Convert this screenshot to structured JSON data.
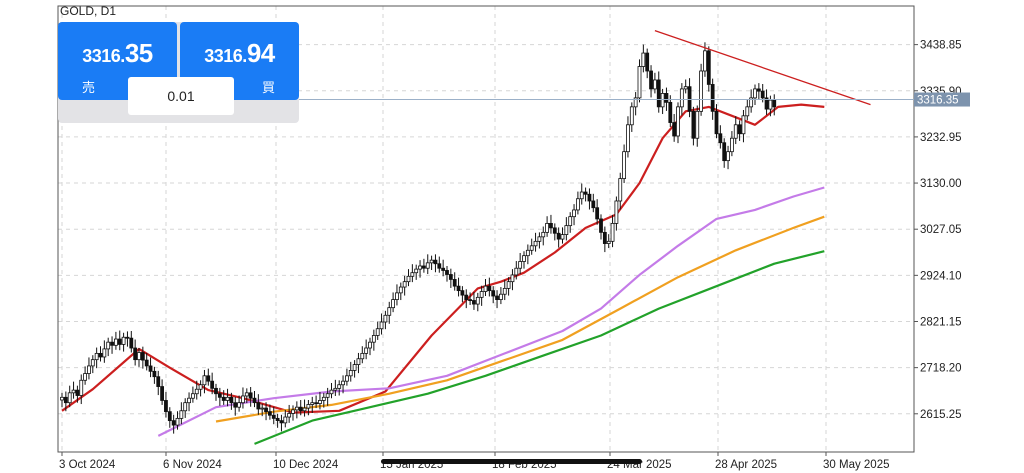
{
  "symbol": "GOLD, D1",
  "trade": {
    "sell": {
      "price_prefix": "3316.",
      "price_big": "35",
      "label": "売"
    },
    "buy": {
      "price_prefix": "3316.",
      "price_big": "94",
      "label": "買"
    },
    "lot": "0.01"
  },
  "chart_data": {
    "type": "candlestick",
    "title": "GOLD, D1",
    "ylim": [
      2530,
      3525
    ],
    "y_ticks": [
      "3438.85",
      "3335.90",
      "3232.95",
      "3130.00",
      "3027.05",
      "2924.10",
      "2821.15",
      "2718.20",
      "2615.25"
    ],
    "x_ticks": [
      "3 Oct 2024",
      "6 Nov 2024",
      "10 Dec 2024",
      "15 Jan 2025",
      "18 Feb 2025",
      "24 Mar 2025",
      "28 Apr 2025",
      "30 May 2025"
    ],
    "current_price": "3316.35",
    "grid": true,
    "candles_close": [
      2652,
      2640,
      2662,
      2668,
      2656,
      2690,
      2705,
      2722,
      2736,
      2750,
      2742,
      2760,
      2775,
      2768,
      2782,
      2770,
      2786,
      2784,
      2762,
      2736,
      2752,
      2735,
      2722,
      2710,
      2698,
      2676,
      2645,
      2620,
      2600,
      2590,
      2605,
      2622,
      2640,
      2650,
      2660,
      2670,
      2680,
      2700,
      2688,
      2672,
      2660,
      2652,
      2645,
      2652,
      2640,
      2630,
      2640,
      2655,
      2662,
      2650,
      2640,
      2626,
      2628,
      2620,
      2612,
      2605,
      2600,
      2595,
      2608,
      2616,
      2624,
      2630,
      2622,
      2628,
      2636,
      2640,
      2638,
      2645,
      2652,
      2660,
      2668,
      2672,
      2680,
      2688,
      2700,
      2712,
      2725,
      2738,
      2750,
      2762,
      2775,
      2790,
      2805,
      2820,
      2835,
      2852,
      2870,
      2885,
      2898,
      2910,
      2922,
      2930,
      2938,
      2945,
      2940,
      2952,
      2958,
      2950,
      2940,
      2935,
      2926,
      2915,
      2900,
      2890,
      2880,
      2870,
      2868,
      2860,
      2875,
      2888,
      2900,
      2890,
      2878,
      2870,
      2882,
      2895,
      2910,
      2925,
      2940,
      2955,
      2968,
      2980,
      2990,
      3000,
      3010,
      3020,
      3040,
      3030,
      3018,
      3005,
      3015,
      3035,
      3055,
      3070,
      3095,
      3110,
      3105,
      3090,
      3075,
      3050,
      3020,
      2995,
      3000,
      3040,
      3090,
      3140,
      3200,
      3260,
      3300,
      3320,
      3390,
      3420,
      3380,
      3340,
      3360,
      3300,
      3330,
      3310,
      3265,
      3235,
      3300,
      3340,
      3345,
      3290,
      3230,
      3290,
      3380,
      3425,
      3350,
      3290,
      3240,
      3220,
      3180,
      3200,
      3230,
      3260,
      3240,
      3280,
      3300,
      3320,
      3340,
      3335,
      3320,
      3295,
      3315,
      3300
    ],
    "series": [
      {
        "name": "MA short",
        "color": "#cc1f1f",
        "points": [
          [
            0,
            2622
          ],
          [
            8,
            2670
          ],
          [
            20,
            2760
          ],
          [
            28,
            2718
          ],
          [
            38,
            2668
          ],
          [
            47,
            2650
          ],
          [
            60,
            2618
          ],
          [
            72,
            2622
          ],
          [
            84,
            2665
          ],
          [
            96,
            2790
          ],
          [
            108,
            2895
          ],
          [
            114,
            2910
          ],
          [
            120,
            2930
          ],
          [
            128,
            2975
          ],
          [
            136,
            3030
          ],
          [
            144,
            3060
          ],
          [
            150,
            3130
          ],
          [
            156,
            3230
          ],
          [
            162,
            3290
          ],
          [
            168,
            3300
          ],
          [
            174,
            3280
          ],
          [
            180,
            3260
          ],
          [
            186,
            3300
          ],
          [
            192,
            3305
          ],
          [
            198,
            3300
          ]
        ]
      },
      {
        "name": "MA medium",
        "color": "#c47be8",
        "points": [
          [
            25,
            2566
          ],
          [
            40,
            2630
          ],
          [
            55,
            2650
          ],
          [
            70,
            2665
          ],
          [
            85,
            2672
          ],
          [
            100,
            2700
          ],
          [
            115,
            2750
          ],
          [
            130,
            2800
          ],
          [
            140,
            2850
          ],
          [
            150,
            2925
          ],
          [
            160,
            2990
          ],
          [
            170,
            3050
          ],
          [
            180,
            3070
          ],
          [
            190,
            3100
          ],
          [
            198,
            3120
          ]
        ]
      },
      {
        "name": "MA long",
        "color": "#f0a020",
        "points": [
          [
            40,
            2598
          ],
          [
            55,
            2620
          ],
          [
            70,
            2635
          ],
          [
            85,
            2660
          ],
          [
            100,
            2690
          ],
          [
            115,
            2735
          ],
          [
            130,
            2780
          ],
          [
            145,
            2850
          ],
          [
            160,
            2920
          ],
          [
            175,
            2980
          ],
          [
            190,
            3030
          ],
          [
            198,
            3055
          ]
        ]
      },
      {
        "name": "MA very long",
        "color": "#22a22a",
        "points": [
          [
            50,
            2548
          ],
          [
            65,
            2600
          ],
          [
            80,
            2630
          ],
          [
            95,
            2660
          ],
          [
            110,
            2700
          ],
          [
            125,
            2745
          ],
          [
            140,
            2790
          ],
          [
            155,
            2850
          ],
          [
            170,
            2900
          ],
          [
            185,
            2950
          ],
          [
            198,
            2978
          ]
        ]
      }
    ],
    "trendline": {
      "color": "#cc1f1f",
      "from": [
        154,
        3470
      ],
      "to": [
        210,
        3305
      ]
    }
  }
}
